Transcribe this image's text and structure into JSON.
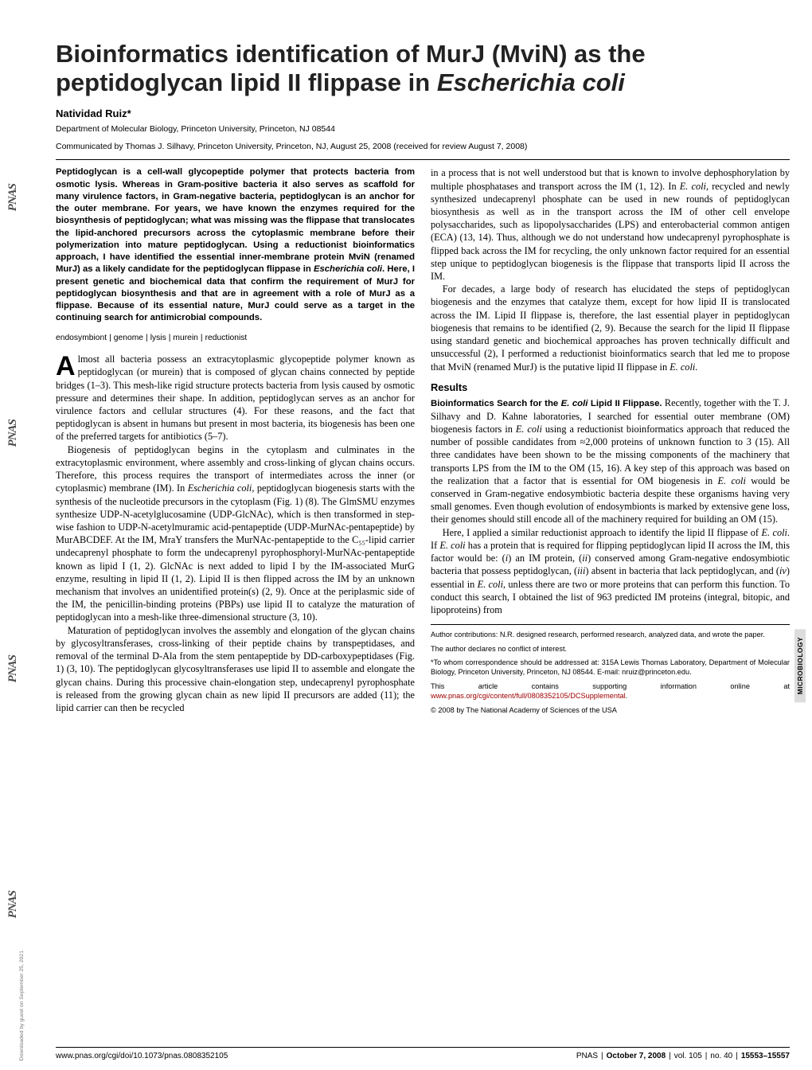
{
  "title_part1": "Bioinformatics identification of MurJ (MviN) as the peptidoglycan lipid II flippase in ",
  "title_ital": "Escherichia coli",
  "author": "Natividad Ruiz*",
  "affiliation": "Department of Molecular Biology, Princeton University, Princeton, NJ 08544",
  "communicated": "Communicated by Thomas J. Silhavy, Princeton University, Princeton, NJ, August 25, 2008 (received for review August 7, 2008)",
  "abstract_a": "Peptidoglycan is a cell-wall glycopeptide polymer that protects bacteria from osmotic lysis. Whereas in Gram-positive bacteria it also serves as scaffold for many virulence factors, in Gram-negative bacteria, peptidoglycan is an anchor for the outer membrane. For years, we have known the enzymes required for the biosynthesis of peptidoglycan; what was missing was the flippase that translocates the lipid-anchored precursors across the cytoplasmic membrane before their polymerization into mature peptidoglycan. Using a reductionist bioinformatics approach, I have identified the essential inner-membrane protein MviN (renamed MurJ) as a likely candidate for the peptidoglycan flippase in ",
  "abstract_b_ital": "Escherichia coli",
  "abstract_c": ". Here, I present genetic and biochemical data that confirm the requirement of MurJ for peptidoglycan biosynthesis and that are in agreement with a role of MurJ as a flippase. Because of its essential nature, MurJ could serve as a target in the continuing search for antimicrobial compounds.",
  "keywords": [
    "endosymbiont",
    "genome",
    "lysis",
    "murein",
    "reductionist"
  ],
  "dropcap": "A",
  "p1": "lmost all bacteria possess an extracytoplasmic glycopeptide polymer known as peptidoglycan (or murein) that is composed of glycan chains connected by peptide bridges (1–3). This mesh-like rigid structure protects bacteria from lysis caused by osmotic pressure and determines their shape. In addition, peptidoglycan serves as an anchor for virulence factors and cellular structures (4). For these reasons, and the fact that peptidoglycan is absent in humans but present in most bacteria, its biogenesis has been one of the preferred targets for antibiotics (5–7).",
  "p2a": "Biogenesis of peptidoglycan begins in the cytoplasm and culminates in the extracytoplasmic environment, where assembly and cross-linking of glycan chains occurs. Therefore, this process requires the transport of intermediates across the inner (or cytoplasmic) membrane (IM). In ",
  "p2b_ital": "Escherichia coli",
  "p2c": ", peptidoglycan biogenesis starts with the synthesis of the nucleotide precursors in the cytoplasm (Fig. 1) (8). The GlmSMU enzymes synthesize UDP-N-acetylglucosamine (UDP-GlcNAc), which is then transformed in step-wise fashion to UDP-N-acetylmuramic acid-pentapeptide (UDP-MurNAc-pentapeptide) by MurABCDEF. At the IM, MraY transfers the MurNAc-pentapeptide to the C₅₅-lipid carrier undecaprenyl phosphate to form the undecaprenyl pyrophosphoryl-MurNAc-pentapeptide known as lipid I (1, 2). GlcNAc is next added to lipid I by the IM-associated MurG enzyme, resulting in lipid II (1, 2). Lipid II is then flipped across the IM by an unknown mechanism that involves an unidentified protein(s) (2, 9). Once at the periplasmic side of the IM, the penicillin-binding proteins (PBPs) use lipid II to catalyze the maturation of peptidoglycan into a mesh-like three-dimensional structure (3, 10).",
  "p3": "Maturation of peptidoglycan involves the assembly and elongation of the glycan chains by glycosyltransferases, cross-linking of their peptide chains by transpeptidases, and removal of the terminal D-Ala from the stem pentapeptide by DD-carboxypeptidases (Fig. 1) (3, 10). The peptidoglycan glycosyltransferases use lipid II to assemble and elongate the glycan chains. During this processive chain-elongation step, undecaprenyl pyrophosphate is released from the growing glycan chain as new lipid II precursors are added (11); the lipid carrier can then be recycled",
  "p4a": "in a process that is not well understood but that is known to involve dephosphorylation by multiple phosphatases and transport across the IM (1, 12). In ",
  "p4b_ital": "E. coli",
  "p4c": ", recycled and newly synthesized undecaprenyl phosphate can be used in new rounds of peptidoglycan biosynthesis as well as in the transport across the IM of other cell envelope polysaccharides, such as lipopolysaccharides (LPS) and enterobacterial common antigen (ECA) (13, 14). Thus, although we do not understand how undecaprenyl pyrophosphate is flipped back across the IM for recycling, the only unknown factor required for an essential step unique to peptidoglycan biogenesis is the flippase that transports lipid II across the IM.",
  "p5a": "For decades, a large body of research has elucidated the steps of peptidoglycan biogenesis and the enzymes that catalyze them, except for how lipid II is translocated across the IM. Lipid II flippase is, therefore, the last essential player in peptidoglycan biogenesis that remains to be identified (2, 9). Because the search for the lipid II flippase using standard genetic and biochemical approaches has proven technically difficult and unsuccessful (2), I performed a reductionist bioinformatics search that led me to propose that MviN (renamed MurJ) is the putative lipid II flippase in ",
  "p5b_ital": "E. coli",
  "p5c": ".",
  "results_head": "Results",
  "inline_a": "Bioinformatics Search for the ",
  "inline_b_ital": "E. coli",
  "inline_c": " Lipid II Flippase.",
  "p6a": " Recently, together with the T. J. Silhavy and D. Kahne laboratories, I searched for essential outer membrane (OM) biogenesis factors in ",
  "p6b_ital": "E. coli",
  "p6c": " using a reductionist bioinformatics approach that reduced the number of possible candidates from ≈2,000 proteins of unknown function to 3 (15). All three candidates have been shown to be the missing components of the machinery that transports LPS from the IM to the OM (15, 16). A key step of this approach was based on the realization that a factor that is essential for OM biogenesis in ",
  "p6d_ital": "E. coli",
  "p6e": " would be conserved in Gram-negative endosymbiotic bacteria despite these organisms having very small genomes. Even though evolution of endosymbionts is marked by extensive gene loss, their genomes should still encode all of the machinery required for building an OM (15).",
  "p7a": "Here, I applied a similar reductionist approach to identify the lipid II flippase of ",
  "p7b_ital": "E. coli",
  "p7c": ". If ",
  "p7d_ital": "E. coli",
  "p7e": " has a protein that is required for flipping peptidoglycan lipid II across the IM, this factor would be: (",
  "p7f_ital": "i",
  "p7g": ") an IM protein, (",
  "p7h_ital": "ii",
  "p7i": ") conserved among Gram-negative endosymbiotic bacteria that possess peptidoglycan, (",
  "p7j_ital": "iii",
  "p7k": ") absent in bacteria that lack peptidoglycan, and (",
  "p7l_ital": "iv",
  "p7m": ") essential in ",
  "p7n_ital": "E. coli",
  "p7o": ", unless there are two or more proteins that can perform this function. To conduct this search, I obtained the list of 963 predicted IM proteins (integral, bitopic, and lipoproteins) from",
  "fn1": "Author contributions: N.R. designed research, performed research, analyzed data, and wrote the paper.",
  "fn2": "The author declares no conflict of interest.",
  "fn3": "*To whom correspondence should be addressed at: 315A Lewis Thomas Laboratory, Department of Molecular Biology, Princeton University, Princeton, NJ 08544. E-mail: nruiz@princeton.edu.",
  "fn4a": "This article contains supporting information online at ",
  "fn4_link": "www.pnas.org/cgi/content/full/0808352105/DCSupplemental",
  "fn4b": ".",
  "fn5": "© 2008 by The National Academy of Sciences of the USA",
  "footer_left": "www.pnas.org/cgi/doi/10.1073/pnas.0808352105",
  "footer_journal": "PNAS",
  "footer_date": "October 7, 2008",
  "footer_vol": "vol. 105",
  "footer_no": "no. 40",
  "footer_pages": "15553–15557",
  "category": "MICROBIOLOGY",
  "download_note": "Downloaded by guest on September 25, 2021",
  "pnas_logo": "PNAS",
  "colors": {
    "link": "#a00000",
    "tab_bg": "#dddddd",
    "text": "#000000",
    "logo": "#4a4a4a"
  }
}
